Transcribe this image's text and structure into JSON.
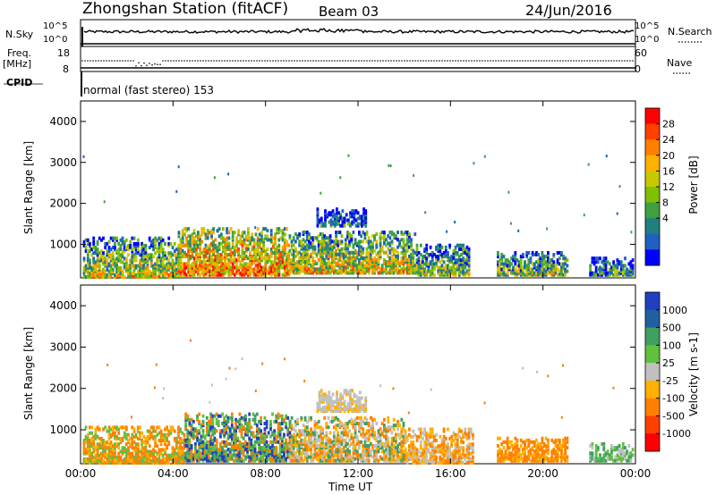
{
  "header": {
    "station": "Zhongshan Station (fitACF)",
    "beam": "Beam 03",
    "date": "24/Jun/2016"
  },
  "top_panels": {
    "nsky_label": "N.Sky",
    "nsky_ticks": [
      "10^5",
      "10^0"
    ],
    "nsearch_label": "N.Search",
    "nsearch_ticks": [
      "10^5",
      "10^0"
    ],
    "freq_label": "Freq.",
    "freq_unit": "[MHz]",
    "freq_ticks": [
      "18",
      "8"
    ],
    "nave_label": "Nave",
    "nave_ticks": [
      "60",
      "0"
    ],
    "cpid_label": "CPID",
    "cpid_text": "normal (fast stereo) 153"
  },
  "chart_data": [
    {
      "type": "heatmap",
      "name": "power",
      "ylabel": "Slant Range [km]",
      "yticks": [
        "4000",
        "3000",
        "2000",
        "1000"
      ],
      "ytick_values": [
        4000,
        3000,
        2000,
        1000
      ],
      "ylim": [
        180,
        4500
      ],
      "xlim": [
        0,
        24
      ],
      "colorbar_label": "Power [dB]",
      "colorbar_ticks": [
        "28",
        "24",
        "20",
        "16",
        "12",
        "8",
        "4"
      ],
      "colorbar_colors": [
        "#ff0000",
        "#ff4000",
        "#ff8000",
        "#ffb000",
        "#c8c800",
        "#80c000",
        "#40a040",
        "#208080",
        "#2060c0",
        "#0000ff"
      ],
      "regions": [
        {
          "t0": 0.1,
          "t1": 4.2,
          "r0": 200,
          "r1": 1150,
          "level": 0.55
        },
        {
          "t0": 4.2,
          "t1": 9.0,
          "r0": 250,
          "r1": 1400,
          "level": 0.75
        },
        {
          "t0": 9.0,
          "t1": 14.5,
          "r0": 300,
          "r1": 1300,
          "level": 0.6
        },
        {
          "t0": 10.2,
          "t1": 12.3,
          "r0": 1450,
          "r1": 1900,
          "level": 0.2
        },
        {
          "t0": 14.5,
          "t1": 16.8,
          "r0": 250,
          "r1": 1000,
          "level": 0.45
        },
        {
          "t0": 18.0,
          "t1": 21.0,
          "r0": 250,
          "r1": 800,
          "level": 0.45
        },
        {
          "t0": 22.0,
          "t1": 23.9,
          "r0": 250,
          "r1": 700,
          "level": 0.3
        }
      ]
    },
    {
      "type": "heatmap",
      "name": "velocity",
      "ylabel": "Slant Range [km]",
      "yticks": [
        "4000",
        "3000",
        "2000",
        "1000"
      ],
      "ytick_values": [
        4000,
        3000,
        2000,
        1000
      ],
      "ylim": [
        180,
        4500
      ],
      "xlim": [
        0,
        24
      ],
      "xlabel": "Time UT",
      "xticks": [
        "00:00",
        "04:00",
        "08:00",
        "12:00",
        "16:00",
        "20:00",
        "00:00"
      ],
      "xtick_values": [
        0,
        4,
        8,
        12,
        16,
        20,
        24
      ],
      "colorbar_label": "Velocity [m s-1]",
      "colorbar_ticks": [
        "1000",
        "500",
        "100",
        "25",
        "-25",
        "-100",
        "-500",
        "-1000"
      ],
      "colorbar_colors": [
        "#2040c0",
        "#2060a0",
        "#40a060",
        "#60c040",
        "#c0c0c0",
        "#ffb000",
        "#ff8000",
        "#ff4000",
        "#ff0000"
      ],
      "regions": [
        {
          "t0": 0.1,
          "t1": 4.5,
          "r0": 200,
          "r1": 1100,
          "mix": [
            "#ff8000",
            "#ff8000",
            "#ffb000",
            "#60c040"
          ]
        },
        {
          "t0": 4.5,
          "t1": 9.0,
          "r0": 250,
          "r1": 1400,
          "mix": [
            "#2040c0",
            "#40a060",
            "#ff8000",
            "#60c040"
          ]
        },
        {
          "t0": 9.0,
          "t1": 14.0,
          "r0": 250,
          "r1": 1300,
          "mix": [
            "#ff8000",
            "#ffb000",
            "#40a060",
            "#c0c0c0"
          ]
        },
        {
          "t0": 10.2,
          "t1": 12.3,
          "r0": 1450,
          "r1": 1950,
          "mix": [
            "#c0c0c0",
            "#c0c0c0",
            "#ffb000"
          ]
        },
        {
          "t0": 14.0,
          "t1": 17.0,
          "r0": 200,
          "r1": 1050,
          "mix": [
            "#ff8000",
            "#c0c0c0",
            "#ffb000"
          ]
        },
        {
          "t0": 18.0,
          "t1": 21.0,
          "r0": 250,
          "r1": 800,
          "mix": [
            "#ff8000",
            "#ff8000",
            "#ffb000"
          ]
        },
        {
          "t0": 22.0,
          "t1": 23.9,
          "r0": 250,
          "r1": 700,
          "mix": [
            "#40a060",
            "#60c040",
            "#c0c0c0"
          ]
        }
      ]
    }
  ]
}
